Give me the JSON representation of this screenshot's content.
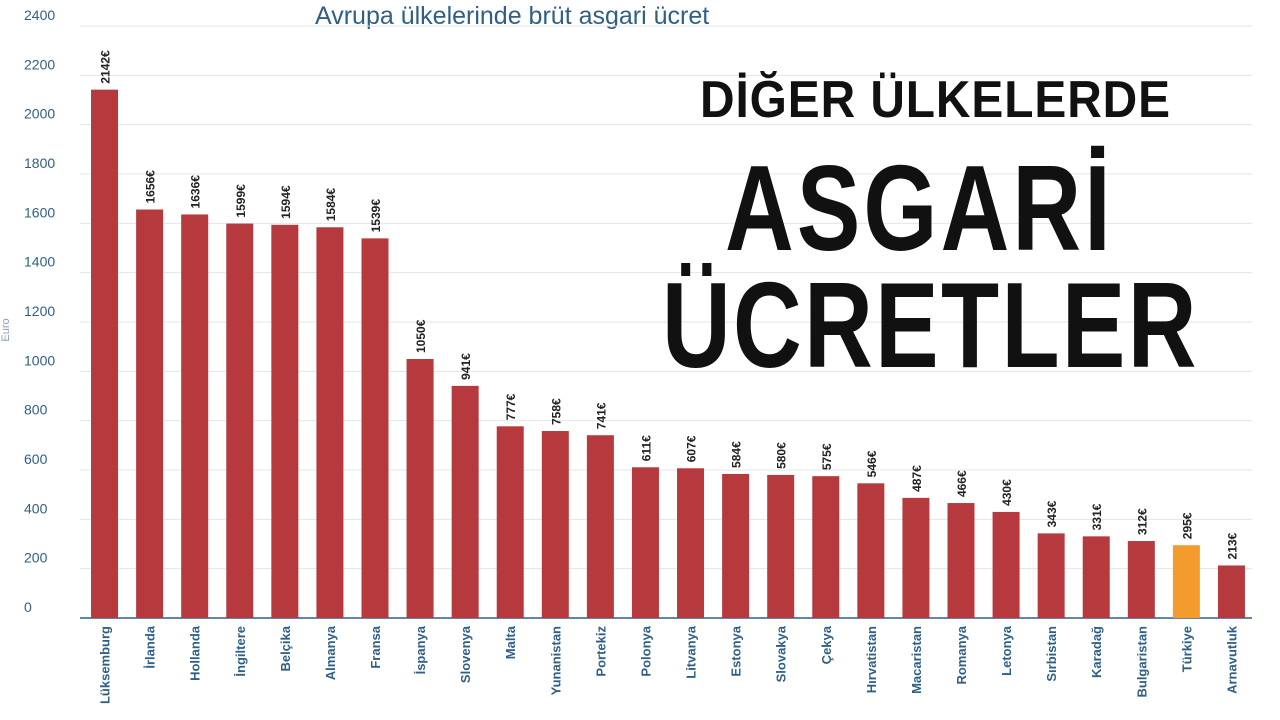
{
  "headline": {
    "line1": "DİĞER ÜLKELERDE",
    "line2": "ASGARİ",
    "line3": "ÜCRETLER"
  },
  "chart_data": {
    "type": "bar",
    "title": "Avrupa ülkelerinde brüt asgari ücret",
    "ylabel": "Euro",
    "ylim": [
      0,
      2400
    ],
    "yticks": [
      "0",
      "200",
      "400",
      "600",
      "800",
      "1000",
      "1200",
      "1400",
      "1600",
      "1800",
      "2000",
      "2200",
      "2400"
    ],
    "grid": true,
    "categories": [
      "Lüksemburg",
      "İrlanda",
      "Hollanda",
      "İngiltere",
      "Belçika",
      "Almanya",
      "Fransa",
      "İspanya",
      "Slovenya",
      "Malta",
      "Yunanistan",
      "Portekiz",
      "Polonya",
      "Litvanya",
      "Estonya",
      "Slovakya",
      "Çekya",
      "Hırvatistan",
      "Macaristan",
      "Romanya",
      "Letonya",
      "Sırbistan",
      "Karadağ",
      "Bulgaristan",
      "Türkiye",
      "Arnavutluk"
    ],
    "values": [
      2142,
      1656,
      1636,
      1599,
      1594,
      1584,
      1539,
      1050,
      941,
      777,
      758,
      741,
      611,
      607,
      584,
      580,
      575,
      546,
      487,
      466,
      430,
      343,
      331,
      312,
      295,
      213
    ],
    "value_labels": [
      "2142€",
      "1656€",
      "1636€",
      "1599€",
      "1594€",
      "1584€",
      "1539€",
      "1050€",
      "941€",
      "777€",
      "758€",
      "741€",
      "611€",
      "607€",
      "584€",
      "580€",
      "575€",
      "546€",
      "487€",
      "466€",
      "430€",
      "343€",
      "331€",
      "312€",
      "295€",
      "213€"
    ],
    "colors": {
      "default": "#b5393d",
      "highlight": "#f39b2c",
      "axis_text": "#2f5f86",
      "grid": "#e3e6ea"
    },
    "highlight_category": "Türkiye"
  }
}
